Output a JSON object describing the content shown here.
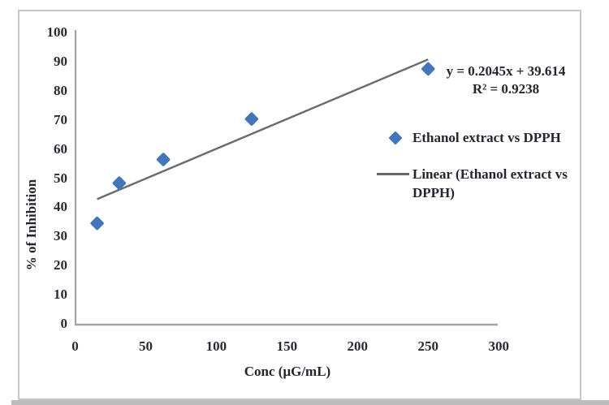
{
  "chart_data": {
    "type": "scatter",
    "title": "",
    "xlabel": "Conc (μG/mL)",
    "ylabel": "% of Inhibition",
    "xlim": [
      0,
      300
    ],
    "ylim": [
      0,
      100
    ],
    "x_ticks": [
      0,
      50,
      100,
      150,
      200,
      250,
      300
    ],
    "y_ticks": [
      0,
      10,
      20,
      30,
      40,
      50,
      60,
      70,
      80,
      90,
      100
    ],
    "grid": false,
    "legend_position": "right",
    "series": [
      {
        "name": "Ethanol extract vs DPPH",
        "type": "scatter",
        "marker": "diamond",
        "points": [
          {
            "x": 15.6,
            "y": 34.5
          },
          {
            "x": 31.25,
            "y": 48.3
          },
          {
            "x": 62.5,
            "y": 56.4
          },
          {
            "x": 125,
            "y": 70.3
          },
          {
            "x": 250,
            "y": 87.5
          }
        ]
      },
      {
        "name": "Linear (Ethanol extract vs DPPH)",
        "type": "line",
        "trend": {
          "slope": 0.2045,
          "intercept": 39.614,
          "x_range": [
            15.6,
            250
          ]
        }
      }
    ]
  },
  "annotation": {
    "equation": "y = 0.2045x + 39.614",
    "r_squared": "R² = 0.9238"
  },
  "colors": {
    "marker_fill": "#4376b8",
    "marker_edge": "#3c69a5",
    "trendline": "#6a6a6a",
    "axis_line": "#a4a4a4",
    "text": "#26242e",
    "frame_border": "#c6c6c6"
  }
}
